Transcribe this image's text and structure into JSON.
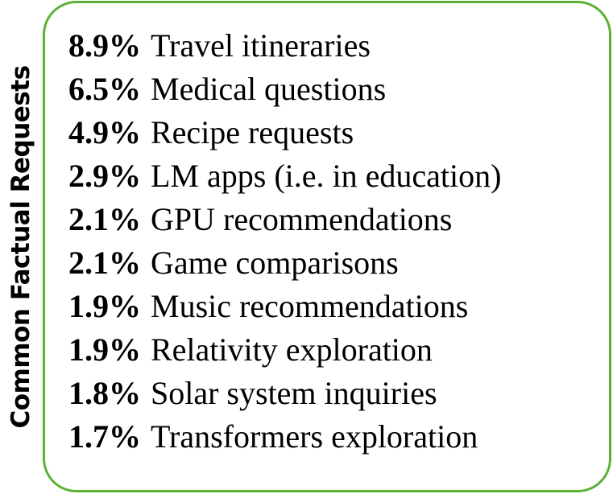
{
  "title": "Common Factual Requests",
  "border_color": "#5cb135",
  "items": [
    {
      "pct": "8.9%",
      "label": "Travel itineraries"
    },
    {
      "pct": "6.5%",
      "label": "Medical questions"
    },
    {
      "pct": "4.9%",
      "label": "Recipe requests"
    },
    {
      "pct": "2.9%",
      "label": "LM apps (i.e. in education)"
    },
    {
      "pct": "2.1%",
      "label": "GPU recommendations"
    },
    {
      "pct": "2.1%",
      "label": "Game comparisons"
    },
    {
      "pct": "1.9%",
      "label": "Music recommendations"
    },
    {
      "pct": "1.9%",
      "label": "Relativity exploration"
    },
    {
      "pct": "1.8%",
      "label": "Solar system inquiries"
    },
    {
      "pct": "1.7%",
      "label": "Transformers exploration"
    }
  ]
}
